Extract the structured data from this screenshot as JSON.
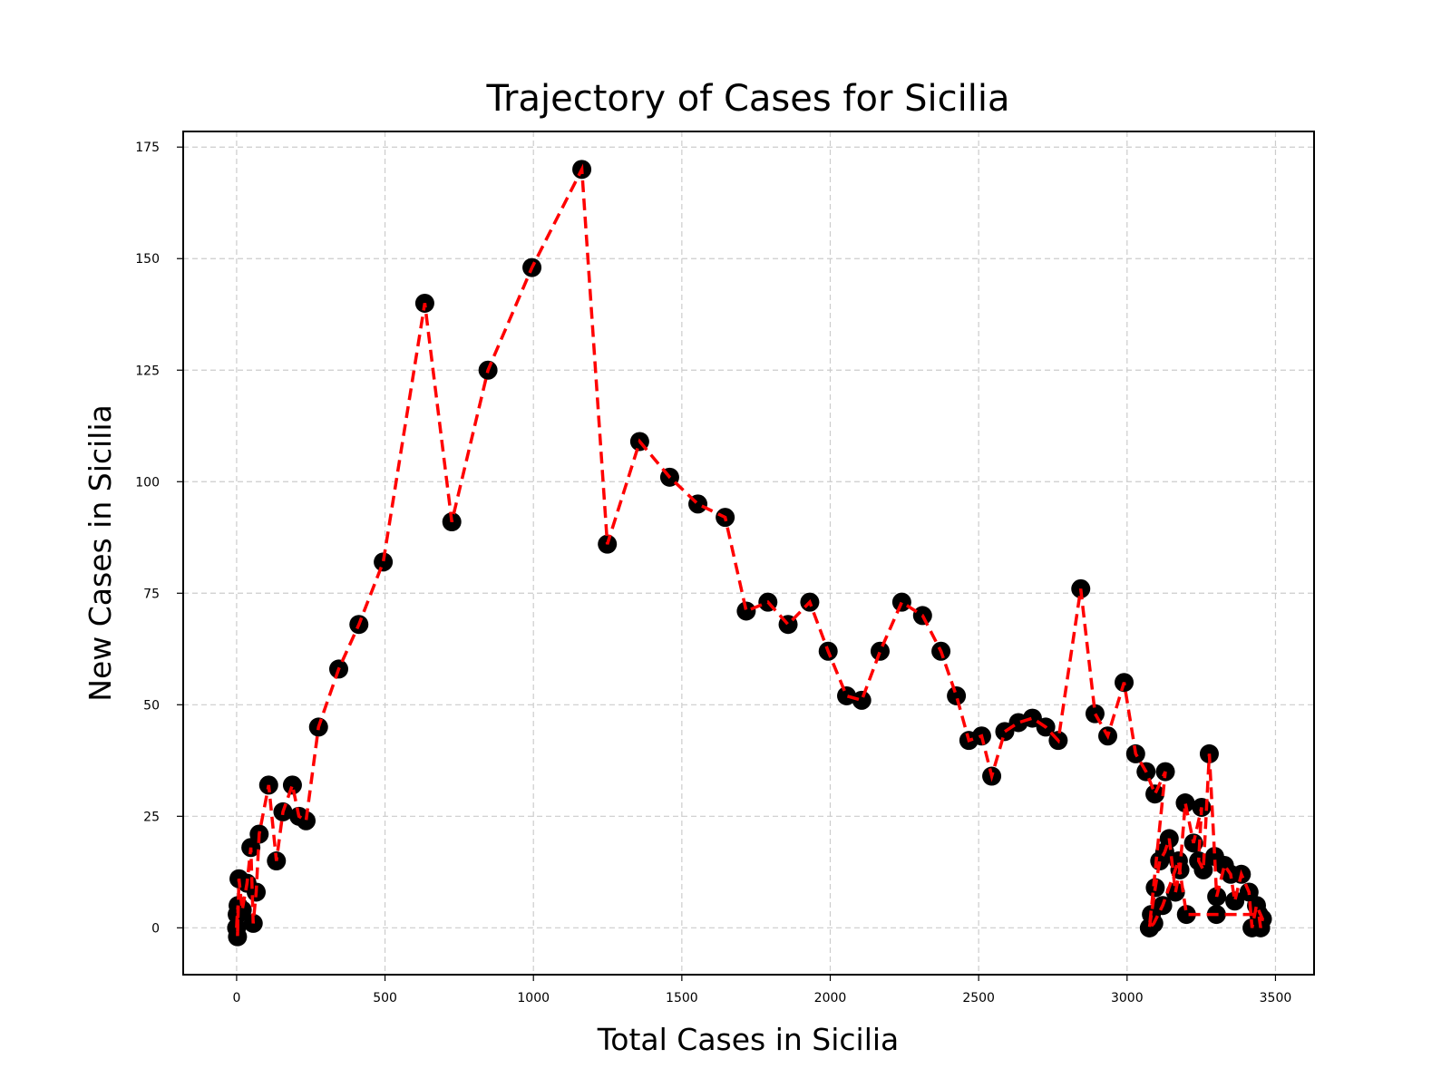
{
  "chart_data": {
    "type": "line",
    "title": "Trajectory of Cases for Sicilia",
    "xlabel": "Total Cases in Sicilia",
    "ylabel": "New Cases in Sicilia",
    "xlim": [
      -180,
      3630
    ],
    "ylim": [
      -10.5,
      178.5
    ],
    "xticks": [
      0,
      500,
      1000,
      1500,
      2000,
      2500,
      3000,
      3500
    ],
    "yticks": [
      0,
      25,
      50,
      75,
      100,
      125,
      150,
      175
    ],
    "grid": true,
    "line_color": "#ff0000",
    "marker_color": "#000000",
    "series": [
      {
        "name": "Sicilia",
        "x": [
          0,
          2,
          5,
          3,
          8,
          19,
          35,
          48,
          56,
          66,
          76,
          108,
          134,
          156,
          188,
          210,
          234,
          276,
          344,
          412,
          494,
          634,
          725,
          847,
          995,
          1163,
          1249,
          1358,
          1459,
          1554,
          1646,
          1717,
          1790,
          1858,
          1931,
          1993,
          2055,
          2106,
          2168,
          2241,
          2311,
          2373,
          2425,
          2467,
          2510,
          2544,
          2588,
          2634,
          2681,
          2726,
          2768,
          2844,
          2892,
          2935,
          2990,
          3029,
          3064,
          3094,
          3129,
          3075,
          3082,
          3095,
          3110,
          3127,
          3142,
          3163,
          3178,
          3196,
          3224,
          3251,
          3241,
          3257,
          3277,
          3295,
          3302,
          3328,
          3349,
          3363,
          3385,
          3411,
          3421,
          3436,
          3456,
          3450,
          3444,
          3301,
          3200,
          3173,
          3120,
          3090,
          3076
        ],
        "y": [
          0,
          3,
          5,
          -2,
          11,
          4,
          10,
          18,
          1,
          8,
          21,
          32,
          15,
          26,
          32,
          25,
          24,
          45,
          58,
          68,
          82,
          140,
          91,
          125,
          148,
          170,
          86,
          109,
          101,
          95,
          92,
          71,
          73,
          68,
          73,
          62,
          52,
          51,
          62,
          73,
          70,
          62,
          52,
          42,
          43,
          34,
          44,
          46,
          47,
          45,
          42,
          76,
          48,
          43,
          55,
          39,
          35,
          30,
          35,
          0,
          3,
          9,
          15,
          17,
          20,
          8,
          13,
          28,
          19,
          27,
          15,
          13,
          39,
          16,
          7,
          14,
          12,
          6,
          12,
          8,
          0,
          5,
          2,
          0,
          3,
          3,
          3,
          15,
          5,
          1,
          0
        ]
      }
    ]
  }
}
